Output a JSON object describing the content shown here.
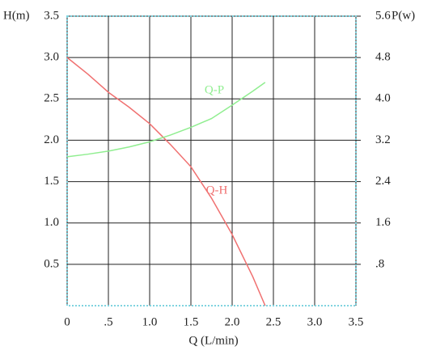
{
  "chart_data": {
    "type": "line",
    "ylabel": "H(m)",
    "y2label": "P(w)",
    "xlabel": "Q (L/min)",
    "x": [
      0,
      0.25,
      0.5,
      0.75,
      1.0,
      1.25,
      1.5,
      1.75,
      2.0,
      2.25,
      2.4
    ],
    "xlim": [
      0,
      3.5
    ],
    "xticks": [
      0,
      {
        "value": 0.5,
        "label": ".5"
      },
      {
        "value": 1.0,
        "label": "1.0"
      },
      1.5,
      {
        "value": 2.0,
        "label": "2.0"
      },
      2.5,
      {
        "value": 3.0,
        "label": "3.0"
      },
      3.5
    ],
    "ylim": [
      0,
      3.5
    ],
    "yticks": [
      {
        "value": 0.5,
        "label": "0.5"
      },
      {
        "value": 1.0,
        "label": "1.0"
      },
      1.5,
      {
        "value": 2.0,
        "label": "2.0"
      },
      2.5,
      {
        "value": 3.0,
        "label": "3.0"
      },
      3.5
    ],
    "y2lim": [
      0,
      5.6
    ],
    "y2ticks": [
      {
        "value": 0.8,
        "label": ".8"
      },
      1.6,
      2.4,
      3.2,
      {
        "value": 4.0,
        "label": "4.0"
      },
      4.8,
      5.6
    ],
    "grid": true,
    "series": [
      {
        "name": "Q-H",
        "color": "#f07070",
        "values": [
          3.0,
          2.8,
          2.58,
          2.4,
          2.2,
          1.95,
          1.68,
          1.3,
          0.86,
          0.35,
          0
        ]
      },
      {
        "name": "Q-P",
        "color": "#90ee90",
        "axis": "y2",
        "values": [
          2.88,
          2.93,
          2.99,
          3.07,
          3.17,
          3.3,
          3.45,
          3.62,
          3.88,
          4.15,
          4.32
        ]
      }
    ]
  }
}
